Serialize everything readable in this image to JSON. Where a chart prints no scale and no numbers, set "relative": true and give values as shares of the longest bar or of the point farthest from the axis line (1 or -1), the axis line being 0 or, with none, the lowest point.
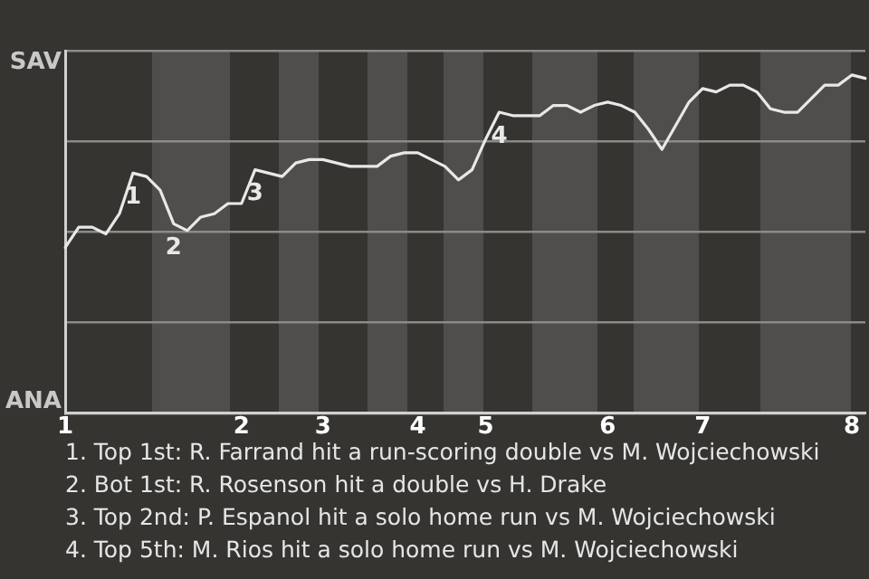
{
  "chart_data": {
    "type": "line",
    "relative": true,
    "grid": "y",
    "legend": false,
    "marker": "none",
    "line_style": "solid",
    "categories": [
      "1",
      null,
      null,
      null,
      null,
      null,
      null,
      null,
      null,
      null,
      null,
      null,
      null,
      "2",
      null,
      null,
      null,
      null,
      null,
      "3",
      null,
      null,
      null,
      null,
      null,
      null,
      "4",
      null,
      null,
      null,
      null,
      "5",
      null,
      null,
      null,
      null,
      null,
      null,
      null,
      null,
      "6",
      null,
      null,
      null,
      null,
      null,
      null,
      "7",
      null,
      null,
      null,
      null,
      null,
      null,
      null,
      null,
      null,
      null,
      "8",
      null
    ],
    "series": [
      {
        "color": "#e8e8e8",
        "values": [
          0.49,
          0.55,
          0.55,
          0.53,
          0.59,
          0.71,
          0.7,
          0.66,
          0.56,
          0.54,
          0.58,
          0.59,
          0.62,
          0.62,
          0.72,
          0.71,
          0.7,
          0.74,
          0.75,
          0.75,
          0.74,
          0.73,
          0.73,
          0.73,
          0.76,
          0.77,
          0.77,
          0.75,
          0.73,
          0.69,
          0.72,
          0.81,
          0.89,
          0.88,
          0.88,
          0.88,
          0.91,
          0.91,
          0.89,
          0.91,
          0.92,
          0.91,
          0.89,
          0.84,
          0.78,
          0.85,
          0.92,
          0.96,
          0.95,
          0.97,
          0.97,
          0.95,
          0.9,
          0.89,
          0.89,
          0.93,
          0.97,
          0.97,
          1,
          0.99
        ]
      }
    ],
    "annotations": [
      "SAV",
      "ANA",
      {
        "text": "1",
        "y": 0.71
      },
      {
        "text": "2",
        "y": 0.56
      },
      {
        "text": "3",
        "y": 0.72
      },
      {
        "text": "4",
        "y": 0.89
      },
      "1. Top 1st: R. Farrand hit a run-scoring double vs M. Wojciechowski",
      "2. Bot 1st: R. Rosenson hit a double vs H. Drake",
      "3. Top 2nd: P. Espanol hit a solo home run vs M. Wojciechowski",
      "4. Top 5th: M. Rios hit a solo home run vs M. Wojciechowski"
    ]
  }
}
